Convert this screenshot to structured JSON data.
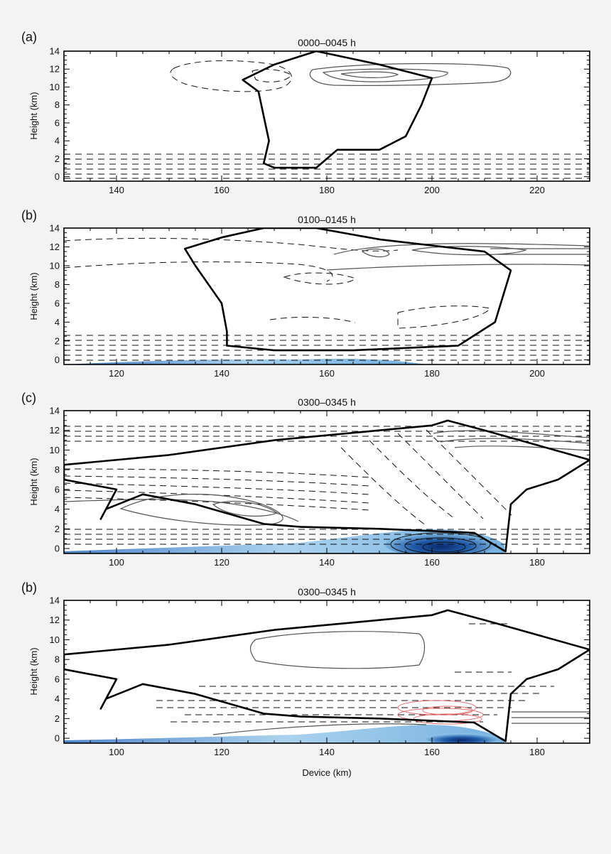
{
  "chart_data": [
    {
      "type": "contour",
      "panel_label": "(a)",
      "title": "0000–0045 h",
      "ylabel": "Height (km)",
      "xlabel": "",
      "xlim": [
        130,
        230
      ],
      "ylim": [
        -0.5,
        14
      ],
      "xticks": [
        140,
        160,
        180,
        200,
        220
      ],
      "yticks": [
        0,
        2,
        4,
        6,
        8,
        10,
        12,
        14
      ],
      "cloud_boundary": [
        [
          168,
          1.5
        ],
        [
          170,
          1.0
        ],
        [
          178,
          1.0
        ],
        [
          182,
          3.0
        ],
        [
          190,
          3.0
        ],
        [
          195,
          4.5
        ],
        [
          198,
          8.0
        ],
        [
          200,
          11.0
        ],
        [
          190,
          12.5
        ],
        [
          178,
          14.0
        ],
        [
          170,
          12.5
        ],
        [
          164,
          10.8
        ],
        [
          167,
          9.5
        ],
        [
          169,
          4.0
        ]
      ],
      "shading": "none"
    },
    {
      "type": "contour",
      "panel_label": "(b)",
      "title": "0100–0145 h",
      "ylabel": "Height (km)",
      "xlabel": "",
      "xlim": [
        110,
        210
      ],
      "ylim": [
        -0.5,
        14
      ],
      "xticks": [
        120,
        140,
        160,
        180,
        200
      ],
      "yticks": [
        0,
        2,
        4,
        6,
        8,
        10,
        12,
        14
      ],
      "cloud_boundary": [
        [
          141,
          1.5
        ],
        [
          150,
          1.0
        ],
        [
          165,
          1.0
        ],
        [
          185,
          1.5
        ],
        [
          192,
          4.0
        ],
        [
          195,
          9.5
        ],
        [
          190,
          11.5
        ],
        [
          170,
          12.8
        ],
        [
          158,
          14.0
        ],
        [
          148,
          14.0
        ],
        [
          140,
          13.0
        ],
        [
          133,
          11.8
        ],
        [
          135,
          10.0
        ],
        [
          140,
          6.0
        ],
        [
          141,
          3.0
        ]
      ],
      "shading": "blue-surface-layer"
    },
    {
      "type": "contour",
      "panel_label": "(c)",
      "title": "0300–0345 h",
      "ylabel": "Height (km)",
      "xlabel": "",
      "xlim": [
        90,
        190
      ],
      "ylim": [
        -0.5,
        14
      ],
      "xticks": [
        100,
        120,
        140,
        160,
        180
      ],
      "yticks": [
        0,
        2,
        4,
        6,
        8,
        10,
        12,
        14
      ],
      "cloud_boundary": [
        [
          90,
          8.5
        ],
        [
          110,
          9.5
        ],
        [
          130,
          11.0
        ],
        [
          150,
          12.0
        ],
        [
          160,
          12.5
        ],
        [
          163,
          13.0
        ],
        [
          170,
          12.0
        ],
        [
          180,
          10.5
        ],
        [
          190,
          9.0
        ],
        [
          184,
          7.0
        ],
        [
          178,
          6.0
        ],
        [
          175,
          4.5
        ],
        [
          174,
          -0.3
        ],
        [
          168,
          1.6
        ],
        [
          150,
          2.0
        ],
        [
          135,
          2.2
        ],
        [
          128,
          2.5
        ],
        [
          115,
          4.5
        ],
        [
          105,
          5.5
        ],
        [
          98,
          4.0
        ],
        [
          97,
          3.0
        ],
        [
          100,
          6.0
        ],
        [
          90,
          7.0
        ]
      ],
      "shading": "blue-surface-layer"
    },
    {
      "type": "contour",
      "panel_label": "(b)",
      "title": "0300–0345 h",
      "ylabel": "Height (km)",
      "xlabel": "Device (km)",
      "xlim": [
        90,
        190
      ],
      "ylim": [
        -0.5,
        14
      ],
      "xticks": [
        100,
        120,
        140,
        160,
        180
      ],
      "yticks": [
        0,
        2,
        4,
        6,
        8,
        10,
        12,
        14
      ],
      "cloud_boundary": [
        [
          90,
          8.5
        ],
        [
          110,
          9.5
        ],
        [
          130,
          11.0
        ],
        [
          150,
          12.0
        ],
        [
          160,
          12.5
        ],
        [
          163,
          13.0
        ],
        [
          170,
          12.0
        ],
        [
          180,
          10.5
        ],
        [
          190,
          9.0
        ],
        [
          184,
          7.0
        ],
        [
          178,
          6.0
        ],
        [
          175,
          4.5
        ],
        [
          174,
          -0.3
        ],
        [
          168,
          1.6
        ],
        [
          150,
          2.0
        ],
        [
          135,
          2.2
        ],
        [
          128,
          2.5
        ],
        [
          115,
          4.5
        ],
        [
          105,
          5.5
        ],
        [
          98,
          4.0
        ],
        [
          97,
          3.0
        ],
        [
          100,
          6.0
        ],
        [
          90,
          7.0
        ]
      ],
      "shading": "blue-surface-layer, red-contours"
    }
  ]
}
